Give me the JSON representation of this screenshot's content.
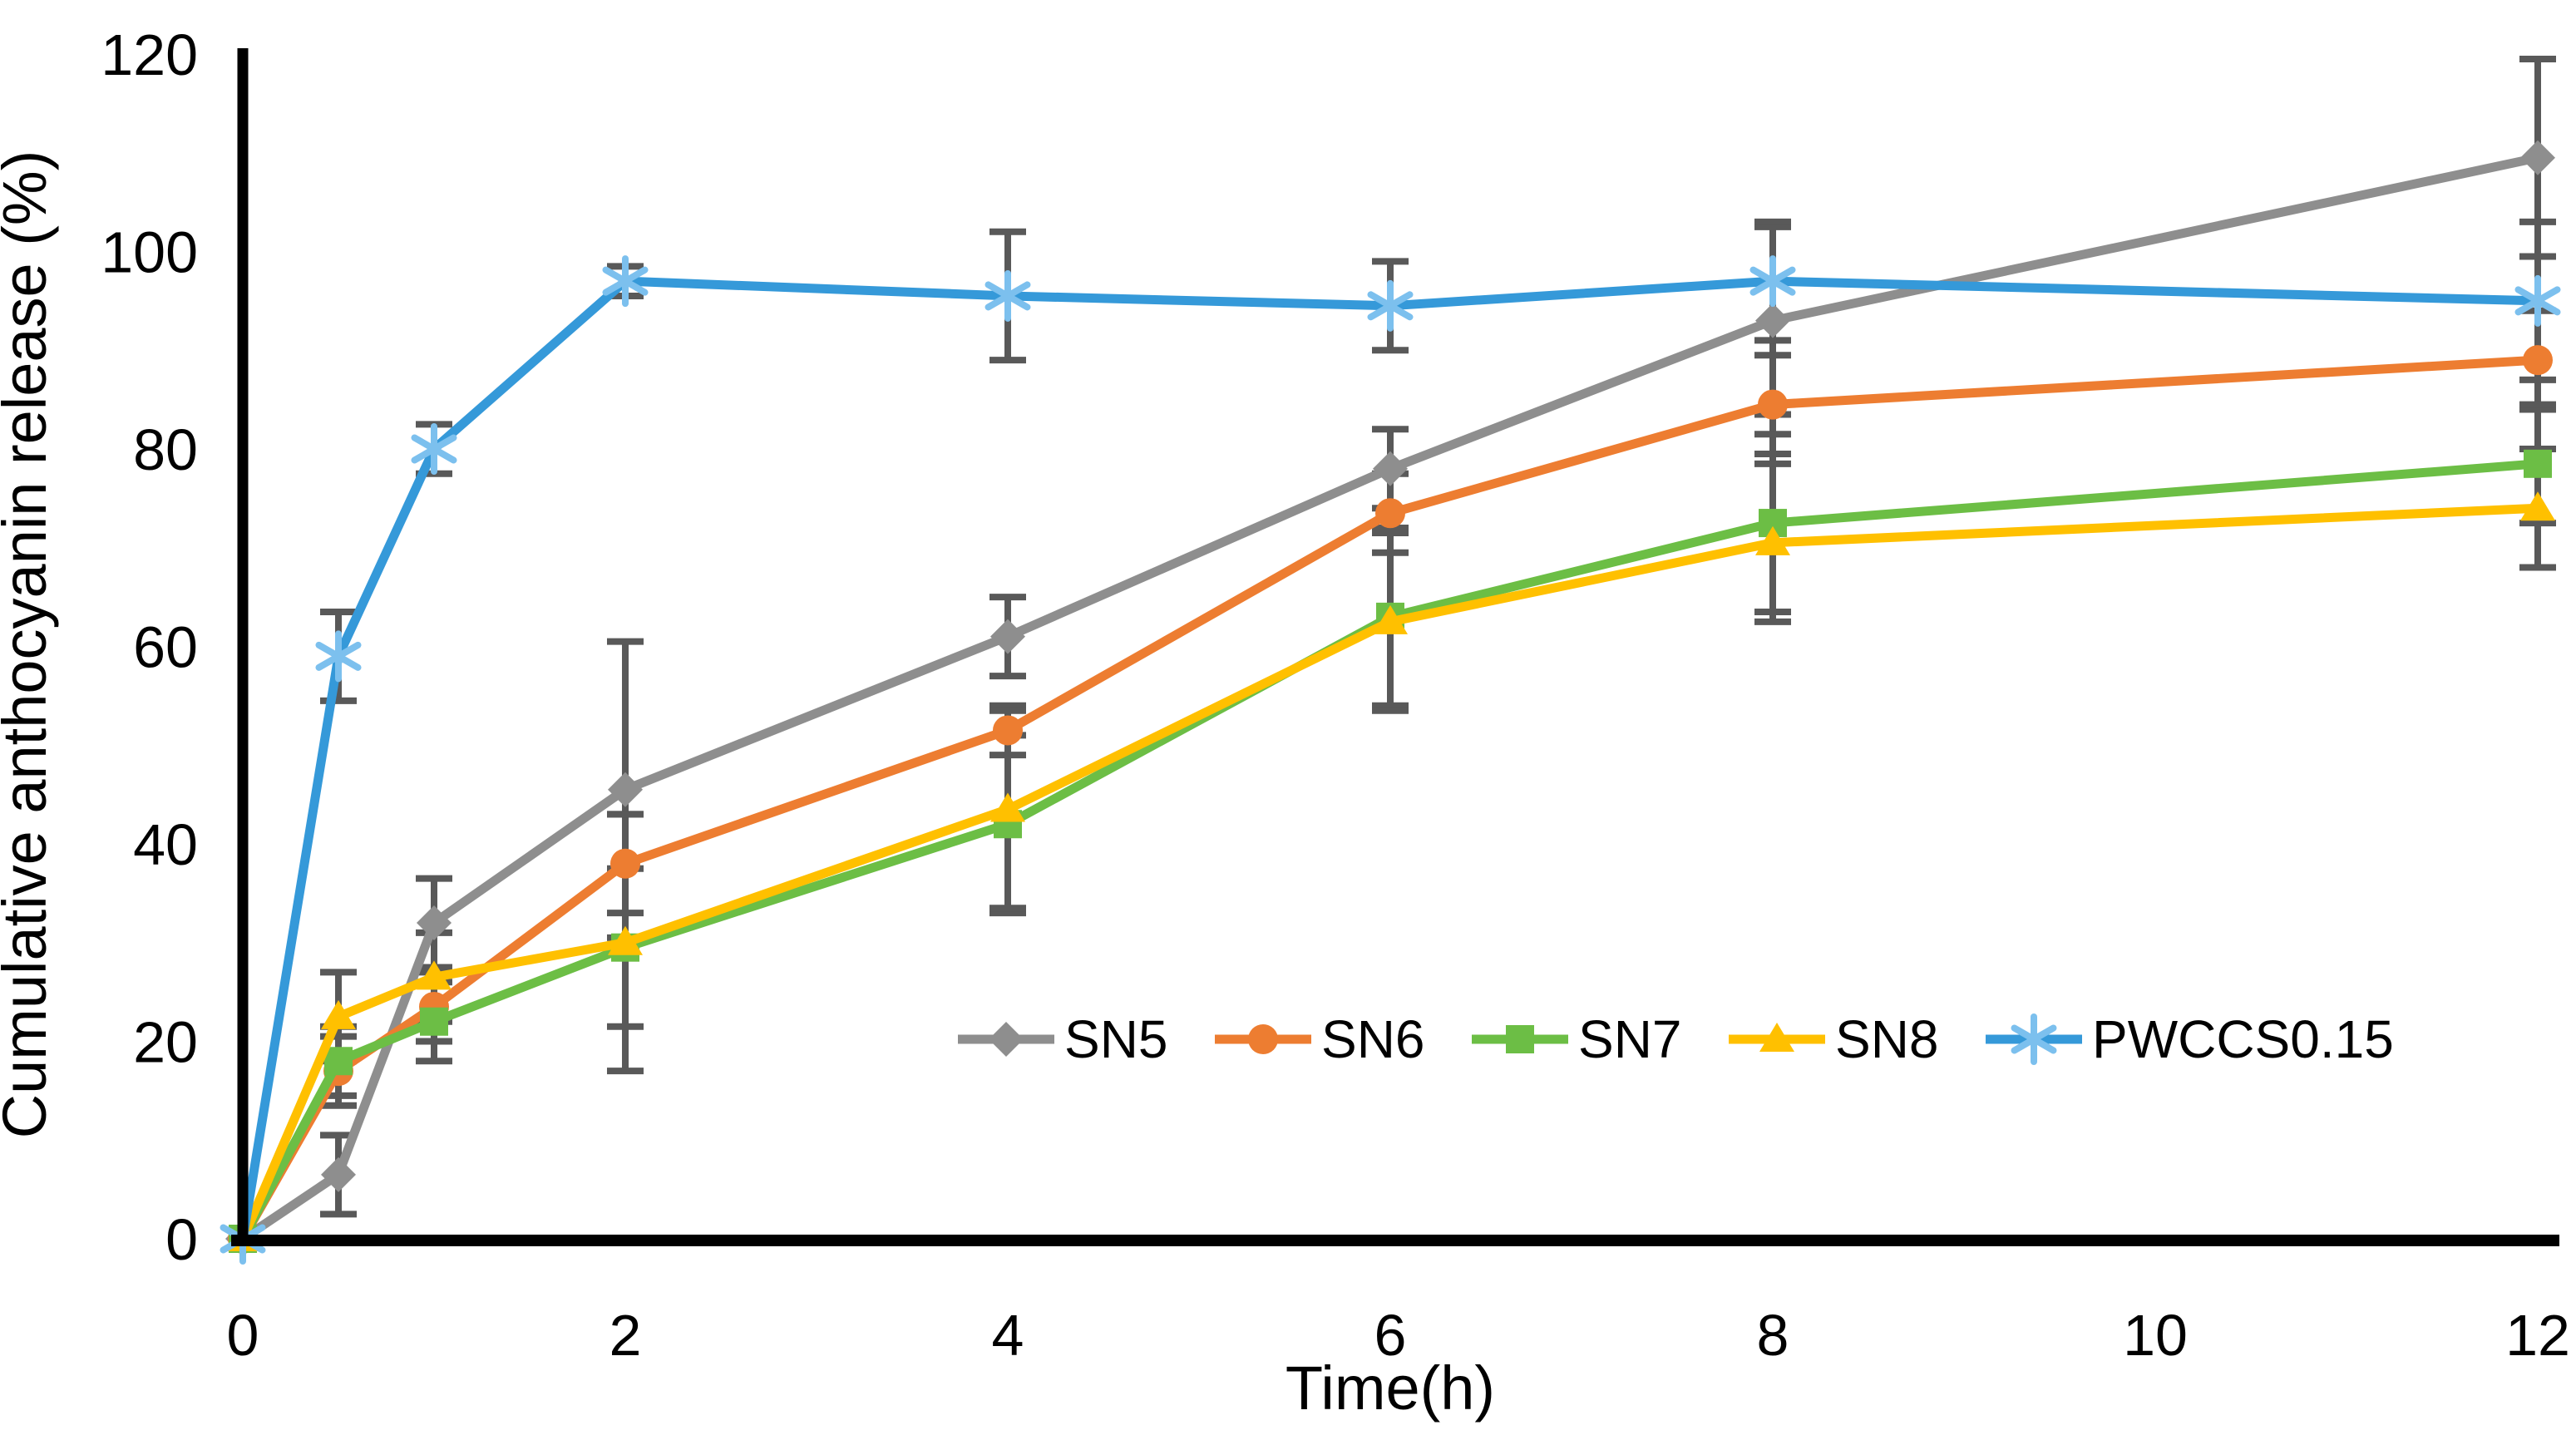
{
  "figure": {
    "background": "#FFFFFF"
  },
  "chart_data": {
    "type": "line",
    "title": "",
    "xlabel": "Time(h)",
    "ylabel": "Cumulative anthocyanin release (%)",
    "xlim": [
      0,
      12
    ],
    "ylim": [
      0,
      120
    ],
    "x_ticks": [
      0,
      2,
      4,
      6,
      8,
      10,
      12
    ],
    "y_ticks": [
      0,
      20,
      40,
      60,
      80,
      100,
      120
    ],
    "grid": false,
    "legend_position": "inside-bottom-center-row",
    "axis_color": "#000000",
    "error_bar_color": "#595959",
    "x": [
      0,
      0.5,
      1,
      2,
      4,
      6,
      8,
      12
    ],
    "series": [
      {
        "name": "SN5",
        "color": "#8E8E8E",
        "marker": "diamond",
        "values": [
          0,
          6.5,
          32,
          45.5,
          61,
          78,
          93,
          109.5
        ],
        "errors": [
          0,
          4,
          4.5,
          15,
          4,
          4,
          9.5,
          10
        ]
      },
      {
        "name": "SN6",
        "color": "#ED7D31",
        "marker": "circle",
        "values": [
          0,
          17,
          23.5,
          38,
          51.5,
          73.5,
          84.5,
          89
        ],
        "errors": [
          0,
          3.5,
          3.5,
          5,
          2.5,
          4,
          5,
          5
        ]
      },
      {
        "name": "SN7",
        "color": "#6CBE45",
        "marker": "square",
        "values": [
          0,
          18,
          22,
          29.5,
          42,
          63,
          72.5,
          78.5
        ],
        "errors": [
          0,
          3.5,
          4,
          8,
          9,
          9,
          9,
          6
        ]
      },
      {
        "name": "SN8",
        "color": "#FFC000",
        "marker": "triangle",
        "values": [
          0,
          22.5,
          26.5,
          30,
          43.5,
          62.5,
          70.5,
          74
        ],
        "errors": [
          0,
          4.5,
          4.5,
          13,
          10,
          9,
          8,
          6
        ]
      },
      {
        "name": "PWCCS0.15",
        "color": "#3599D9",
        "marker": "asterisk",
        "marker_color": "#7CC0EE",
        "values": [
          0,
          59,
          80,
          97,
          95.5,
          94.5,
          97,
          95
        ],
        "errors": [
          0,
          4.5,
          2.5,
          1.5,
          6.5,
          4.5,
          6,
          8
        ]
      }
    ]
  }
}
